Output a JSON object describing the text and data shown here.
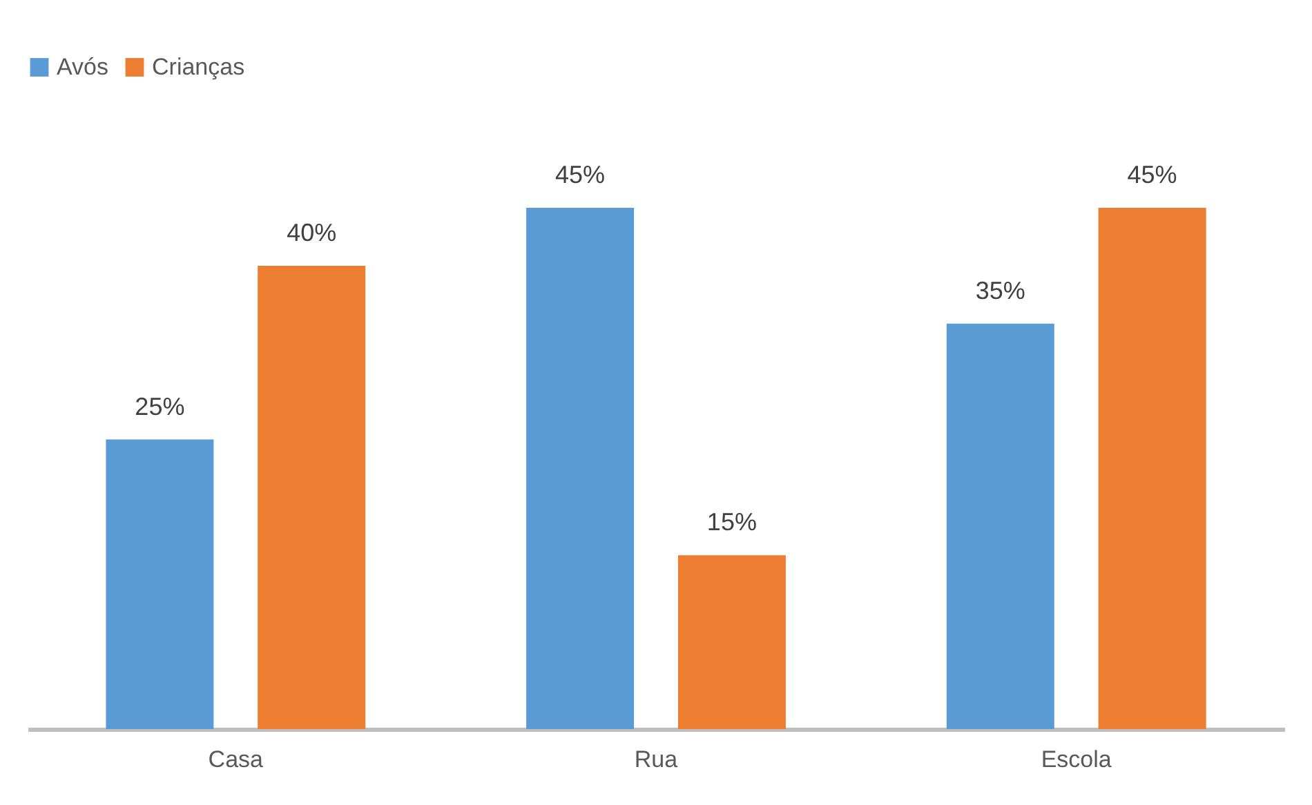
{
  "chart_data": {
    "type": "bar",
    "categories": [
      "Casa",
      "Rua",
      "Escola"
    ],
    "series": [
      {
        "name": "Avós",
        "color": "#5b9bd5",
        "values": [
          25,
          45,
          35
        ],
        "value_labels": [
          "25%",
          "45%",
          "35%"
        ]
      },
      {
        "name": "Crianças",
        "color": "#ed7d31",
        "values": [
          40,
          15,
          45
        ],
        "value_labels": [
          "40%",
          "15%",
          "45%"
        ]
      }
    ],
    "legend": "top"
  }
}
